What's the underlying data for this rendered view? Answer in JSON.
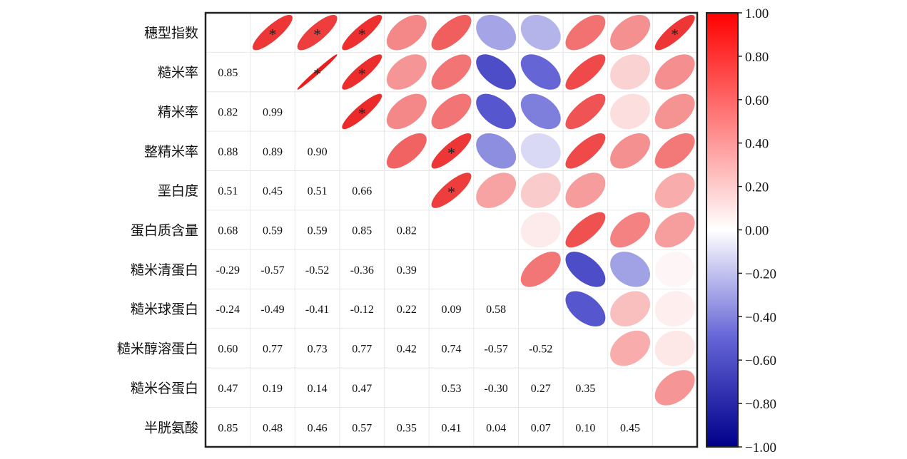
{
  "chart_data": {
    "type": "heatmap",
    "subtype": "correlation-ellipse-matrix",
    "variables": [
      "穗型指数",
      "糙米率",
      "精米率",
      "整精米率",
      "垩白度",
      "蛋白质含量",
      "糙米清蛋白",
      "糙米球蛋白",
      "糙米醇溶蛋白",
      "糙米谷蛋白",
      "半胱氨酸"
    ],
    "lower_triangle": [
      [],
      [
        0.85
      ],
      [
        0.82,
        0.99
      ],
      [
        0.88,
        0.89,
        0.9
      ],
      [
        0.51,
        0.45,
        0.51,
        0.66
      ],
      [
        0.68,
        0.59,
        0.59,
        0.85,
        0.82
      ],
      [
        -0.29,
        -0.57,
        -0.52,
        -0.36,
        0.39,
        null
      ],
      [
        -0.24,
        -0.49,
        -0.41,
        -0.12,
        0.22,
        0.09,
        0.58
      ],
      [
        0.6,
        0.77,
        0.73,
        0.77,
        0.42,
        0.74,
        -0.57,
        -0.52
      ],
      [
        0.47,
        0.19,
        0.14,
        0.47,
        null,
        0.53,
        -0.3,
        0.27,
        0.35
      ],
      [
        0.85,
        0.48,
        0.46,
        0.57,
        0.35,
        0.41,
        0.04,
        0.07,
        0.1,
        0.45
      ]
    ],
    "significance_marker": "*",
    "significant_pairs": [
      [
        0,
        1
      ],
      [
        0,
        2
      ],
      [
        0,
        3
      ],
      [
        0,
        10
      ],
      [
        1,
        2
      ],
      [
        1,
        3
      ],
      [
        2,
        3
      ],
      [
        3,
        5
      ],
      [
        4,
        5
      ]
    ],
    "colorbar": {
      "range": [
        -1,
        1
      ],
      "ticks": [
        "1.00",
        "0.80",
        "0.60",
        "0.40",
        "0.20",
        "0.00",
        "−0.20",
        "−0.40",
        "−0.60",
        "−0.80",
        "−1.00"
      ],
      "colors": {
        "positive": "#ff0000",
        "zero": "#ffffff",
        "negative_mid": "#5a5ad2",
        "negative": "#00008b"
      }
    },
    "legend_placement": "right"
  }
}
